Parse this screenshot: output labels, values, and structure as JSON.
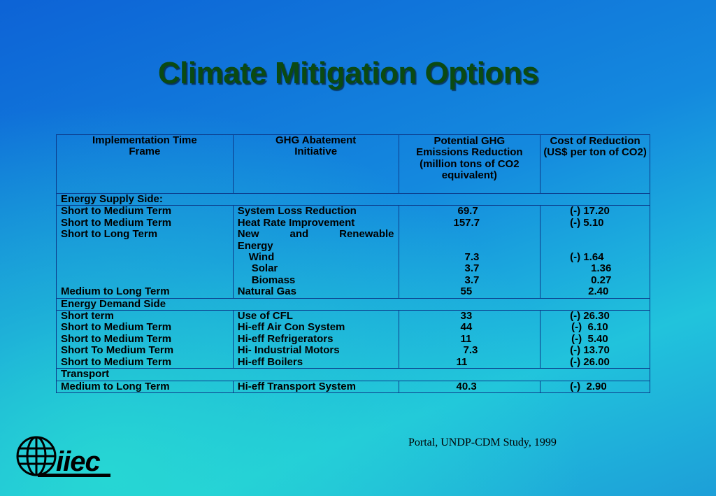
{
  "slide": {
    "title": "Climate Mitigation Options",
    "source": "Portal, UNDP-CDM Study, 1999",
    "logo_text": "iiec"
  },
  "table": {
    "headers": {
      "timeframe": "Implementation Time Frame",
      "initiative": "GHG Abatement Initiative",
      "reduction": "Potential GHG Emissions Reduction (million tons of CO2 equivalent)",
      "cost": "Cost of Reduction (US$ per ton of CO2)"
    },
    "supply": {
      "label": "Energy Supply Side:",
      "rows": [
        {
          "timeframe": "Short to Medium Term",
          "initiative": "System Loss Reduction",
          "reduction": "69.7",
          "cost": "(-) 17.20"
        },
        {
          "timeframe": "Short to Medium Term",
          "initiative": "Heat Rate Improvement",
          "reduction": "157.7",
          "cost": "(-) 5.10"
        }
      ],
      "renewable": {
        "timeframe": "Short to Long Term",
        "initiative_a": "New",
        "initiative_b": "and",
        "initiative_c": "Renewable",
        "initiative_d": "Energy",
        "wind": "Wind",
        "wind_reduction": "7.3",
        "wind_cost": "(-) 1.64",
        "solar": "Solar",
        "solar_reduction": "3.7",
        "solar_cost": "1.36",
        "biomass": "Biomass",
        "biomass_reduction": "3.7",
        "biomass_cost": "0.27"
      },
      "gas": {
        "timeframe": "Medium to Long Term",
        "initiative": "Natural Gas",
        "reduction": "55",
        "cost": "2.40"
      }
    },
    "demand": {
      "label": "Energy Demand Side",
      "rows": [
        {
          "timeframe": "Short term",
          "initiative": "Use of CFL",
          "reduction": "33",
          "cost": "(-) 26.30"
        },
        {
          "timeframe": "Short to Medium Term",
          "initiative": "Hi-eff Air Con System",
          "reduction": "44",
          "cost": "(-)  6.10"
        },
        {
          "timeframe": "Short to Medium Term",
          "initiative": "Hi-eff Refrigerators",
          "reduction": "11",
          "cost": "(-)  5.40"
        },
        {
          "timeframe": "Short To Medium Term",
          "initiative": "Hi- Industrial Motors",
          "reduction": "7.3",
          "cost": "(-) 13.70"
        },
        {
          "timeframe": "Short to Medium Term",
          "initiative": "Hi-eff Boilers",
          "reduction": "11",
          "cost": "(-) 26.00"
        }
      ]
    },
    "transport": {
      "label": "Transport",
      "rows": [
        {
          "timeframe": "Medium to Long Term",
          "initiative": "Hi-eff Transport System",
          "reduction": "40.3",
          "cost": "(-)  2.90"
        }
      ]
    }
  }
}
